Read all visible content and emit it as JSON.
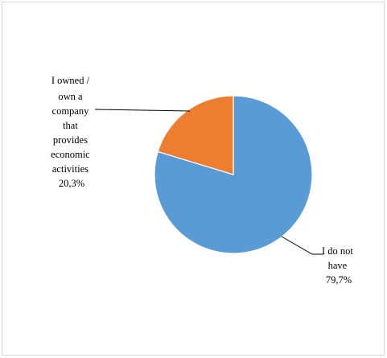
{
  "chart_data": {
    "type": "pie",
    "title": "",
    "slices": [
      {
        "label_lines": [
          "I do not",
          "have"
        ],
        "value_label": "79,7%",
        "value": 79.7,
        "color": "#5B9BD5"
      },
      {
        "label_lines": [
          "I owned /",
          "own a",
          "company",
          "that",
          "provides",
          "economic",
          "activities"
        ],
        "value_label": "20,3%",
        "value": 20.3,
        "color": "#ED7D31"
      }
    ],
    "legend": "none",
    "data_labels": "outside-with-leader-lines"
  }
}
